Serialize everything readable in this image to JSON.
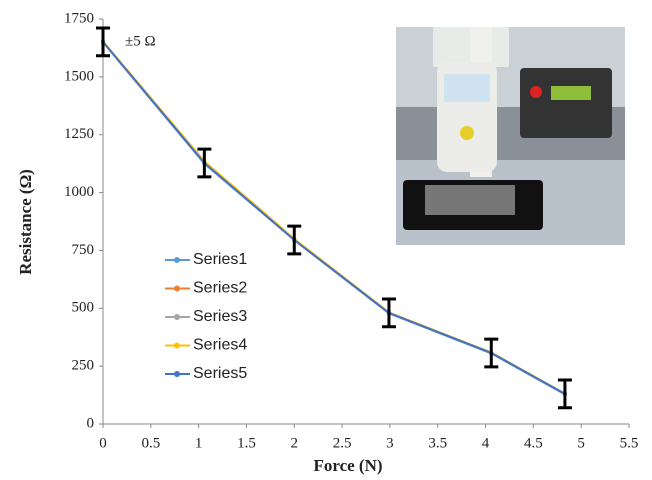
{
  "chart_data": {
    "type": "line",
    "x_label": "Force (N)",
    "y_label": "Resistance (Ω)",
    "annotation": "±5 Ω",
    "x": [
      0,
      1.06,
      2.0,
      2.99,
      4.06,
      4.83
    ],
    "series": [
      {
        "name": "Series1",
        "color": "#5b9bd5",
        "values": [
          1650,
          1125,
          795,
          478,
          305,
          128
        ]
      },
      {
        "name": "Series2",
        "color": "#ed7d31",
        "values": [
          1652,
          1130,
          797,
          480,
          307,
          130
        ]
      },
      {
        "name": "Series3",
        "color": "#a5a5a5",
        "values": [
          1650,
          1128,
          795,
          480,
          307,
          130
        ]
      },
      {
        "name": "Series4",
        "color": "#ffc000",
        "values": [
          1653,
          1135,
          800,
          482,
          309,
          131
        ]
      },
      {
        "name": "Series5",
        "color": "#4472c4",
        "values": [
          1651,
          1128,
          795,
          480,
          307,
          130
        ]
      }
    ],
    "errors": [
      60,
      60,
      60,
      60,
      60,
      60
    ],
    "xlim": [
      0,
      5.5
    ],
    "xticks": [
      0,
      0.5,
      1,
      1.5,
      2,
      2.5,
      3,
      3.5,
      4,
      4.5,
      5,
      5.5
    ],
    "ylim": [
      0,
      1750
    ],
    "yticks": [
      0,
      250,
      500,
      750,
      1000,
      1250,
      1500,
      1750
    ]
  }
}
